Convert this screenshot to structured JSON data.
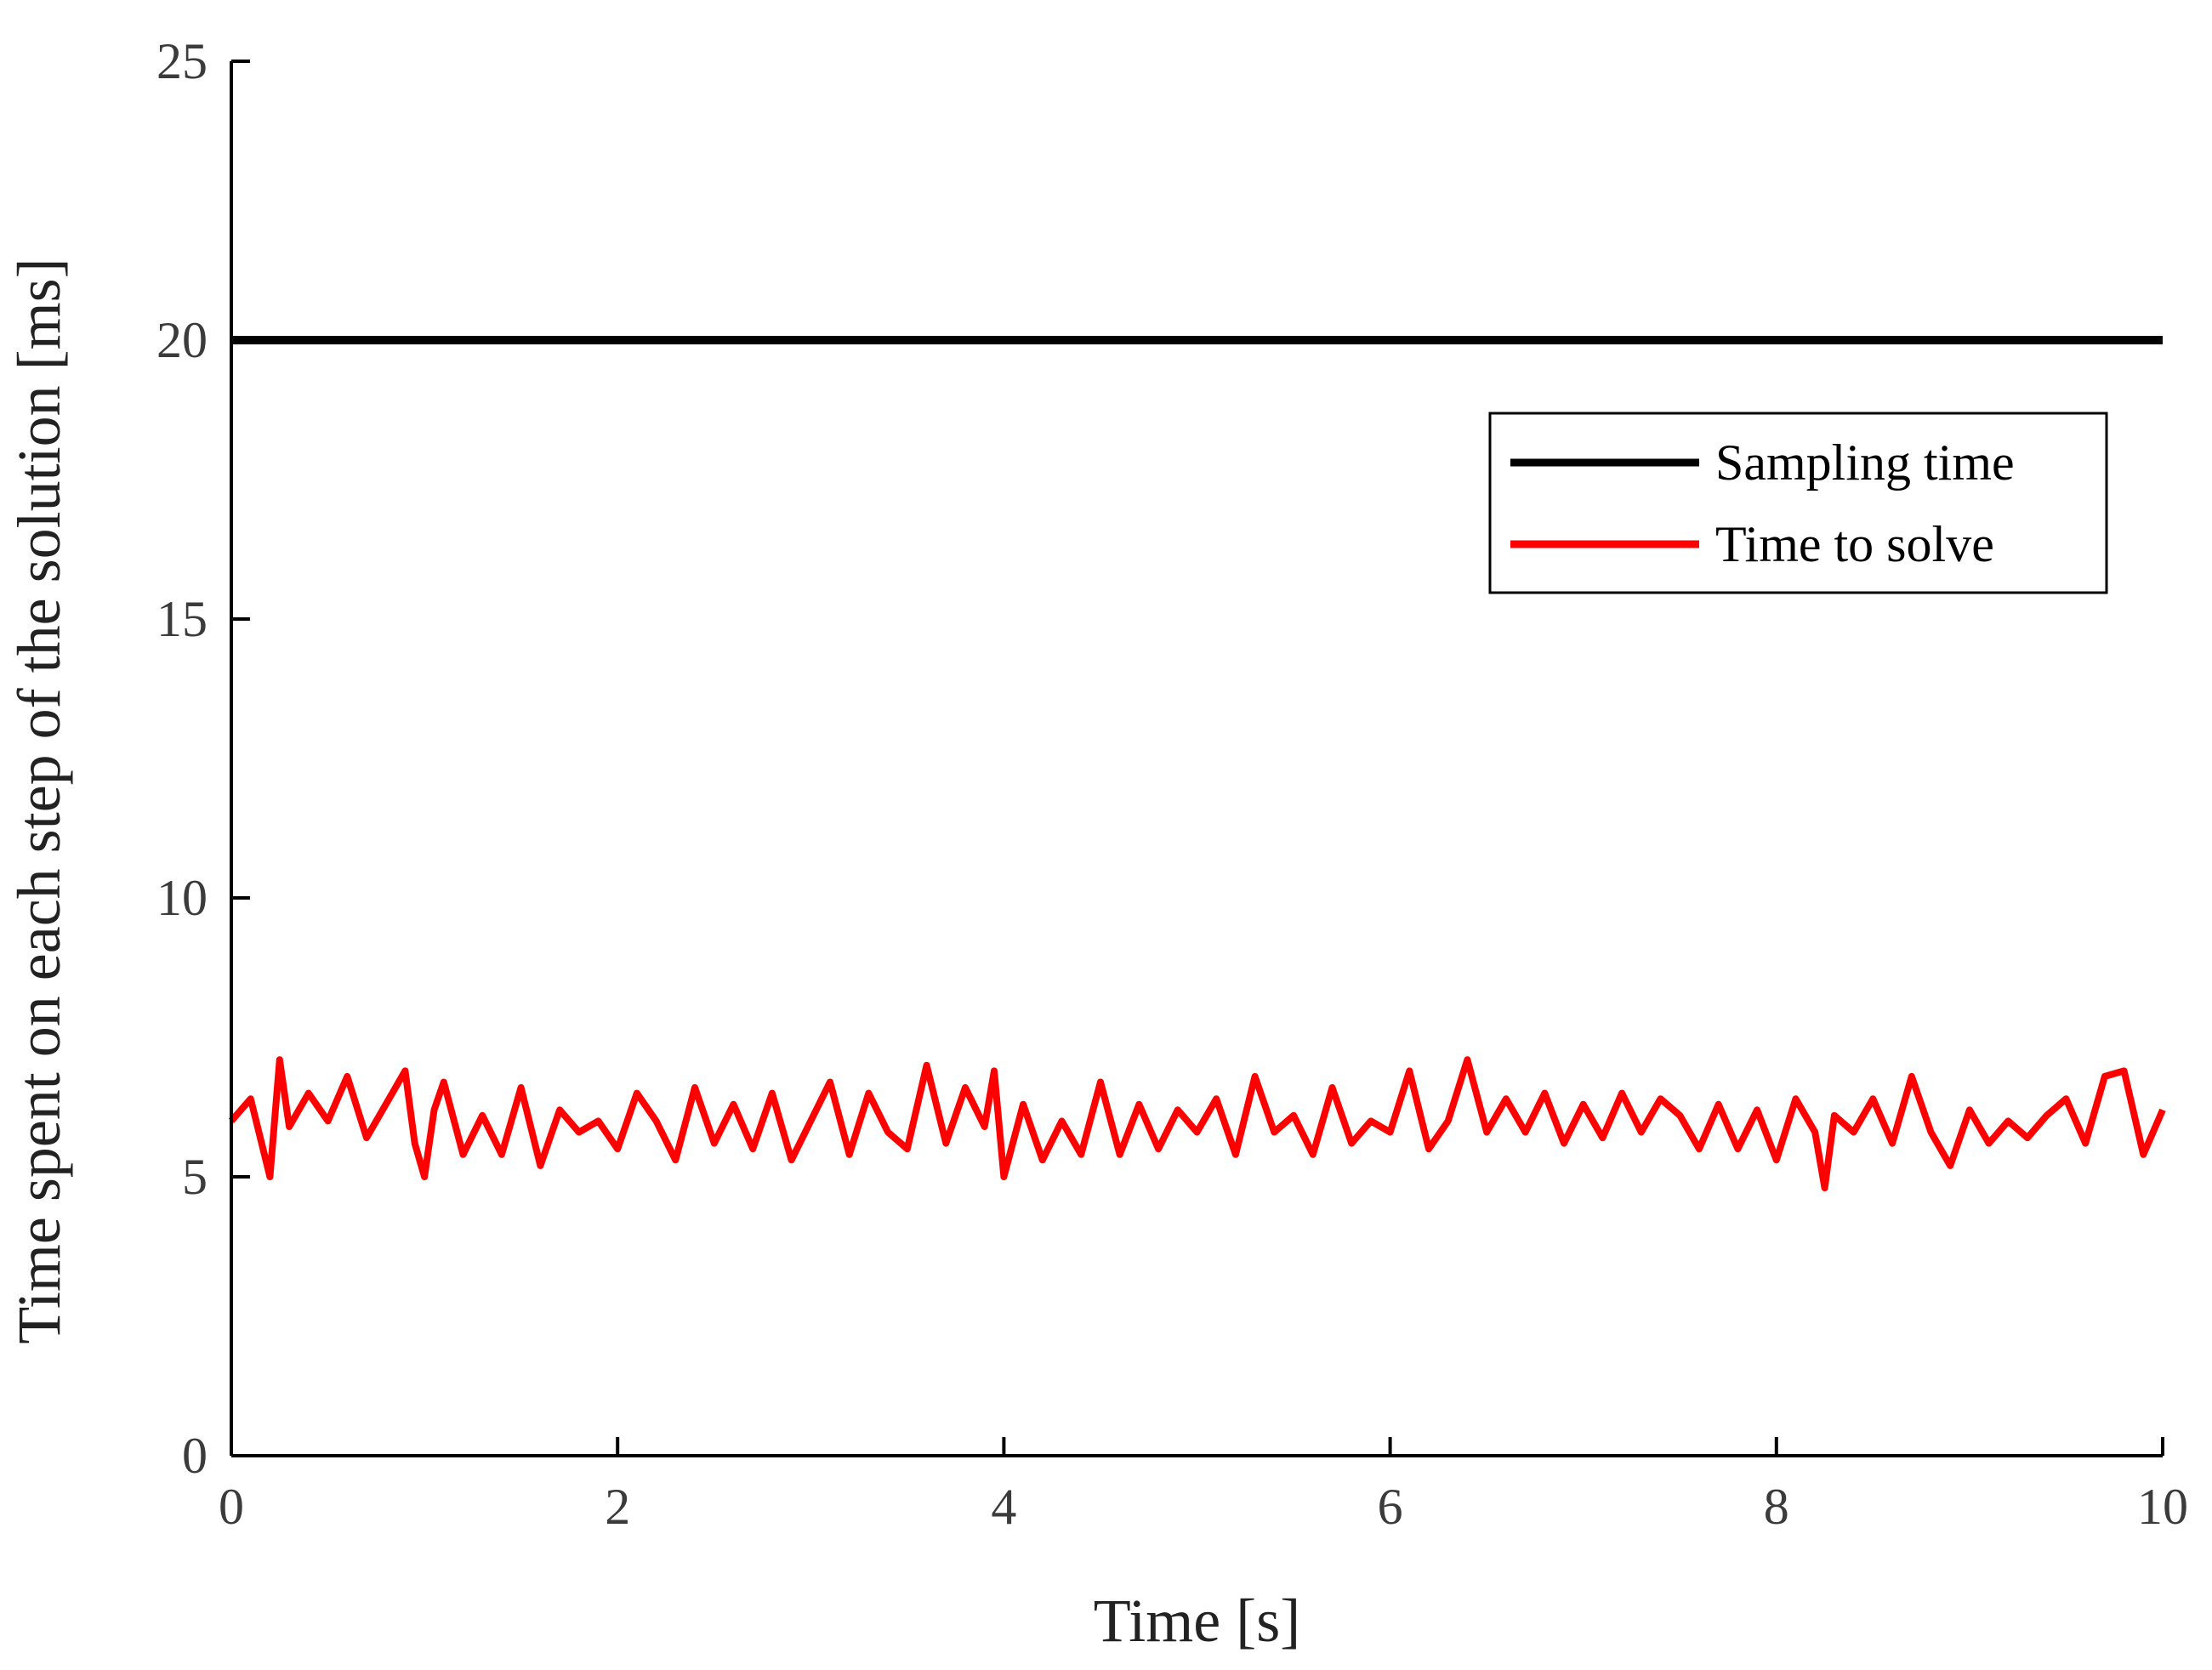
{
  "chart_data": {
    "type": "line",
    "title": "",
    "xlabel": "Time [s]",
    "ylabel": "Time spent on each step of the solution [ms]",
    "xlim": [
      0,
      10
    ],
    "ylim": [
      0,
      25
    ],
    "xticks": [
      0,
      2,
      4,
      6,
      8,
      10
    ],
    "yticks": [
      0,
      5,
      10,
      15,
      20,
      25
    ],
    "xtick_labels": [
      "0",
      "2",
      "4",
      "6",
      "8",
      "10"
    ],
    "ytick_labels": [
      "0",
      "5",
      "10",
      "15",
      "20",
      "25"
    ],
    "grid": false,
    "legend_position": "top-right",
    "series": [
      {
        "name": "Sampling time",
        "color": "#000000",
        "x": [
          0,
          10
        ],
        "y": [
          20,
          20
        ]
      },
      {
        "name": "Time to solve",
        "color": "#ff0000",
        "x": [
          0,
          0.1,
          0.2,
          0.25,
          0.3,
          0.4,
          0.5,
          0.6,
          0.7,
          0.8,
          0.9,
          0.95,
          1.0,
          1.05,
          1.1,
          1.2,
          1.3,
          1.4,
          1.5,
          1.6,
          1.7,
          1.8,
          1.9,
          2.0,
          2.1,
          2.2,
          2.3,
          2.4,
          2.5,
          2.6,
          2.7,
          2.8,
          2.9,
          3.0,
          3.1,
          3.2,
          3.3,
          3.4,
          3.5,
          3.6,
          3.7,
          3.8,
          3.9,
          3.95,
          4.0,
          4.1,
          4.2,
          4.3,
          4.4,
          4.5,
          4.6,
          4.7,
          4.8,
          4.9,
          5.0,
          5.1,
          5.2,
          5.3,
          5.4,
          5.5,
          5.6,
          5.7,
          5.8,
          5.9,
          6.0,
          6.1,
          6.2,
          6.3,
          6.4,
          6.5,
          6.6,
          6.7,
          6.8,
          6.9,
          7.0,
          7.1,
          7.2,
          7.3,
          7.4,
          7.5,
          7.6,
          7.7,
          7.8,
          7.9,
          8.0,
          8.1,
          8.2,
          8.25,
          8.3,
          8.4,
          8.5,
          8.6,
          8.7,
          8.8,
          8.9,
          9.0,
          9.1,
          9.2,
          9.3,
          9.4,
          9.5,
          9.6,
          9.7,
          9.8,
          9.9,
          10.0
        ],
        "y": [
          6.0,
          6.4,
          5.0,
          7.1,
          5.9,
          6.5,
          6.0,
          6.8,
          5.7,
          6.3,
          6.9,
          5.6,
          5.0,
          6.2,
          6.7,
          5.4,
          6.1,
          5.4,
          6.6,
          5.2,
          6.2,
          5.8,
          6.0,
          5.5,
          6.5,
          6.0,
          5.3,
          6.6,
          5.6,
          6.3,
          5.5,
          6.5,
          5.3,
          6.0,
          6.7,
          5.4,
          6.5,
          5.8,
          5.5,
          7.0,
          5.6,
          6.6,
          5.9,
          6.9,
          5.0,
          6.3,
          5.3,
          6.0,
          5.4,
          6.7,
          5.4,
          6.3,
          5.5,
          6.2,
          5.8,
          6.4,
          5.4,
          6.8,
          5.8,
          6.1,
          5.4,
          6.6,
          5.6,
          6.0,
          5.8,
          6.9,
          5.5,
          6.0,
          7.1,
          5.8,
          6.4,
          5.8,
          6.5,
          5.6,
          6.3,
          5.7,
          6.5,
          5.8,
          6.4,
          6.1,
          5.5,
          6.3,
          5.5,
          6.2,
          5.3,
          6.4,
          5.8,
          4.8,
          6.1,
          5.8,
          6.4,
          5.6,
          6.8,
          5.8,
          5.2,
          6.2,
          5.6,
          6.0,
          5.7,
          6.1,
          6.4,
          5.6,
          6.8,
          6.9,
          5.4,
          6.2
        ]
      }
    ]
  }
}
